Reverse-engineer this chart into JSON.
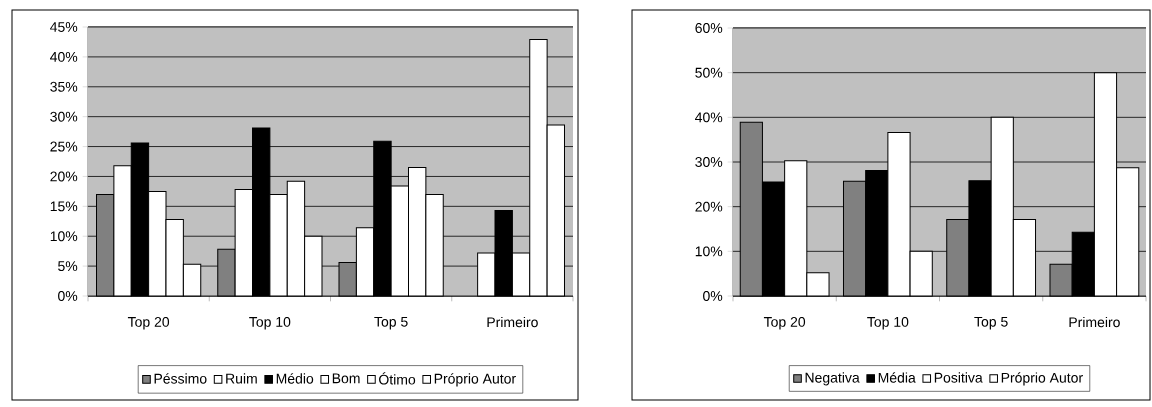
{
  "chart_data": [
    {
      "type": "bar",
      "categories": [
        "Top 20",
        "Top 10",
        "Top 5",
        "Primeiro"
      ],
      "ylim": [
        0,
        45
      ],
      "yticks": [
        {
          "value": 0,
          "label": "0%"
        },
        {
          "value": 5,
          "label": "5%"
        },
        {
          "value": 10,
          "label": "10%"
        },
        {
          "value": 15,
          "label": "15%"
        },
        {
          "value": 20,
          "label": "20%"
        },
        {
          "value": 25,
          "label": "25%"
        },
        {
          "value": 30,
          "label": "30%"
        },
        {
          "value": 35,
          "label": "35%"
        },
        {
          "value": 40,
          "label": "40%"
        },
        {
          "value": 45,
          "label": "45%"
        }
      ],
      "grid": "y",
      "legend": "bottom",
      "series": [
        {
          "name": "Péssimo",
          "color": "#808080",
          "values": [
            17,
            7.8,
            5.6,
            null
          ]
        },
        {
          "name": "Ruim",
          "color": "#ffffff",
          "values": [
            21.8,
            17.8,
            11.4,
            7.2
          ]
        },
        {
          "name": "Médio",
          "color": "#000000",
          "values": [
            25.6,
            28.1,
            25.9,
            14.3
          ]
        },
        {
          "name": "Bom",
          "color": "#ffffff",
          "values": [
            17.5,
            17,
            18.4,
            7.2
          ]
        },
        {
          "name": "Ótimo",
          "color": "#ffffff",
          "values": [
            12.8,
            19.2,
            21.5,
            42.9
          ]
        },
        {
          "name": "Próprio Autor",
          "color": "#ffffff",
          "values": [
            5.3,
            10,
            17,
            28.6
          ]
        }
      ]
    },
    {
      "type": "bar",
      "categories": [
        "Top 20",
        "Top 10",
        "Top 5",
        "Primeiro"
      ],
      "ylim": [
        0,
        60
      ],
      "yticks": [
        {
          "value": 0,
          "label": "0%"
        },
        {
          "value": 10,
          "label": "10%"
        },
        {
          "value": 20,
          "label": "20%"
        },
        {
          "value": 30,
          "label": "30%"
        },
        {
          "value": 40,
          "label": "40%"
        },
        {
          "value": 50,
          "label": "50%"
        },
        {
          "value": 60,
          "label": "60%"
        }
      ],
      "grid": "y",
      "legend": "bottom",
      "series": [
        {
          "name": "Negativa",
          "color": "#808080",
          "values": [
            38.9,
            25.7,
            17.1,
            7.1
          ]
        },
        {
          "name": "Média",
          "color": "#000000",
          "values": [
            25.5,
            28.1,
            25.8,
            14.3
          ]
        },
        {
          "name": "Positiva",
          "color": "#ffffff",
          "values": [
            30.3,
            36.6,
            40,
            50
          ]
        },
        {
          "name": "Próprio Autor",
          "color": "#ffffff",
          "values": [
            5.2,
            10,
            17.1,
            28.7
          ]
        }
      ]
    }
  ]
}
